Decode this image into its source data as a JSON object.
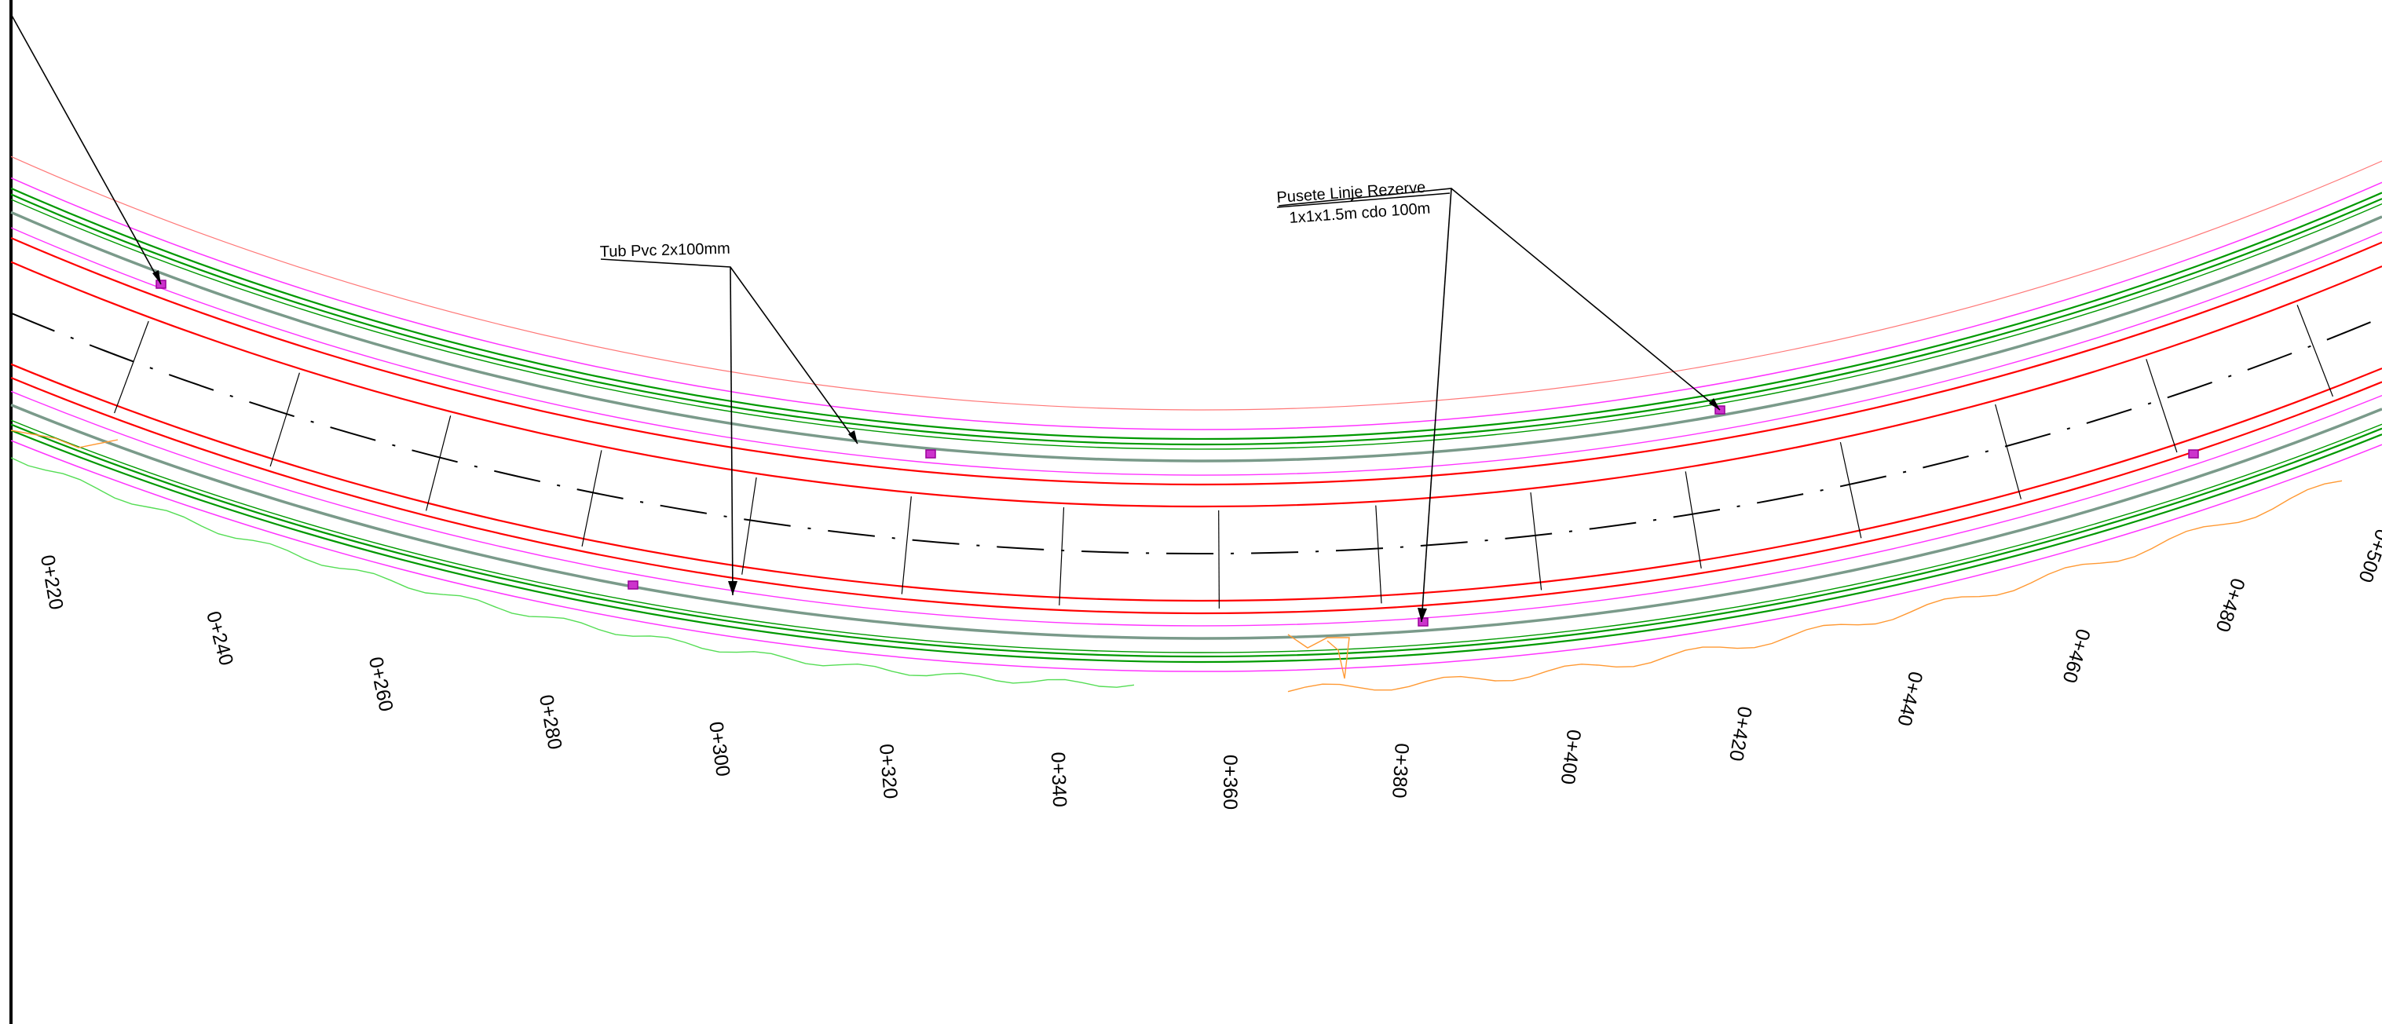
{
  "drawing": {
    "callouts": [
      {
        "line1": "Tub Pvc  2x100mm",
        "line2": ""
      },
      {
        "line1": "Pusete Linje Rezerve",
        "line2": "1x1x1.5m cdo 100m"
      }
    ],
    "stations": [
      "0+220",
      "0+240",
      "0+260",
      "0+280",
      "0+300",
      "0+320",
      "0+340",
      "0+360",
      "0+380",
      "0+400",
      "0+420",
      "0+440",
      "0+460",
      "0+480",
      "0+500"
    ],
    "colors": {
      "axis": "#000000",
      "carriageway": "#ff0000",
      "pipe_lines": "#009900",
      "berm_lines": "#7a9a8a",
      "boundary_lines": "#ff33ff",
      "offset_line": "#ff7777",
      "terrain_left": "#55dd55",
      "terrain_right": "#ff9933",
      "manhole": "#cc33cc",
      "frame": "#000000"
    }
  }
}
